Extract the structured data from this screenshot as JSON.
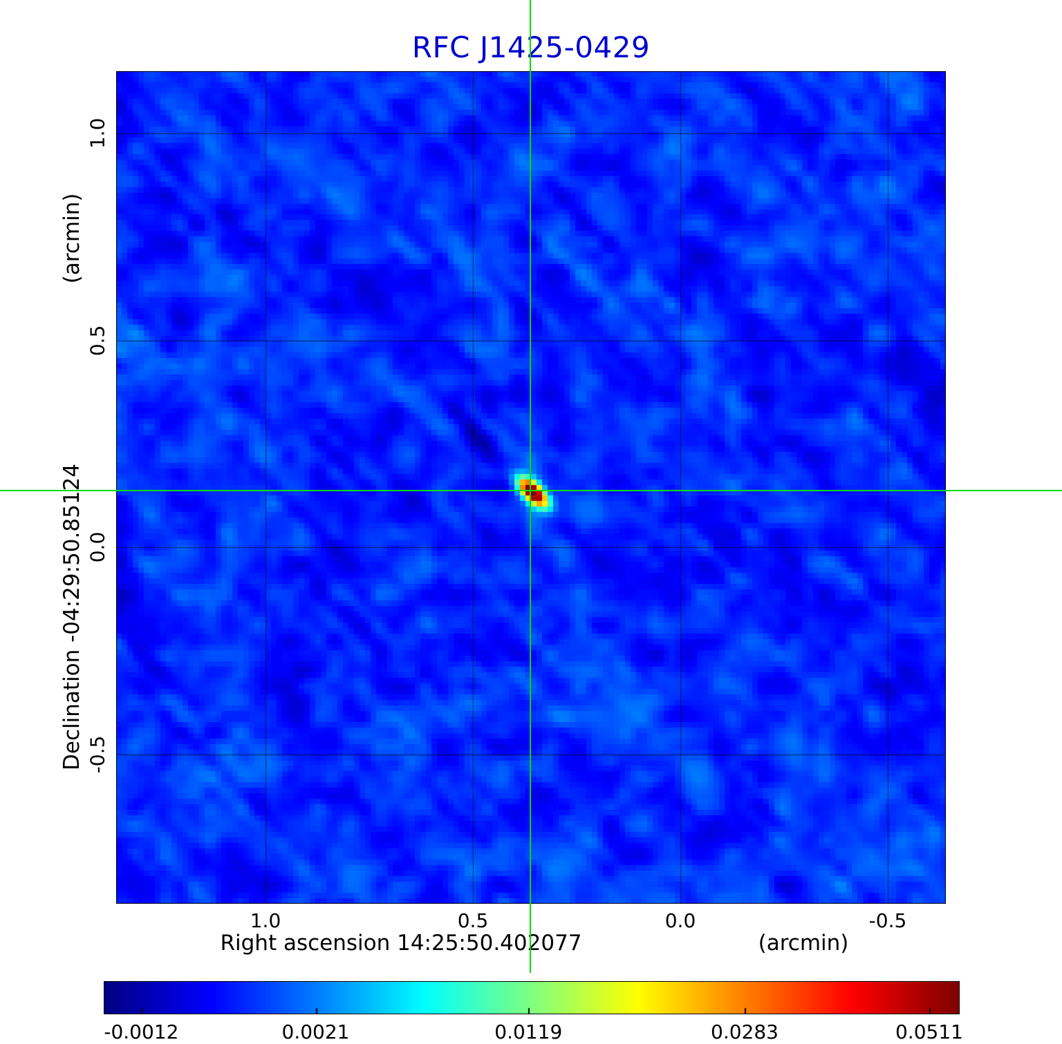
{
  "title": "RFC J1425-0429",
  "title_color": "#0000cd",
  "chart_data": {
    "type": "heatmap",
    "title": "RFC J1425-0429",
    "xlabel": "Right ascension  14:25:50.402077",
    "x_unit": "(arcmin)",
    "ylabel": "Declination  -04:29:50.85124",
    "y_unit": "(arcmin)",
    "x_ticks": [
      1.0,
      0.5,
      0.0,
      -0.5
    ],
    "x_tick_labels": [
      "1.0",
      "0.5",
      "0.0",
      "-0.5"
    ],
    "y_ticks": [
      1.0,
      0.5,
      0.0,
      -0.5
    ],
    "y_tick_labels": [
      "1.0",
      "0.5",
      "0.0",
      "-0.5"
    ],
    "x_range": [
      1.36,
      -0.64
    ],
    "y_range": [
      1.15,
      -0.86
    ],
    "grid": true,
    "colormap": "jet",
    "colorbar": {
      "orientation": "horizontal",
      "labels": [
        "-0.0012",
        "0.0021",
        "0.0119",
        "0.0283",
        "0.0511"
      ],
      "label_positions": [
        0.044,
        0.248,
        0.497,
        0.75,
        0.966
      ]
    },
    "crosshair": {
      "x": 0.362,
      "y": 0.137,
      "color": "#00dd00"
    },
    "source": {
      "x": 0.362,
      "y": 0.137,
      "peak_value": 0.0511,
      "position_angle_deg": 45
    },
    "texture": {
      "seed_coarse": 11,
      "seed_fine": 23,
      "seed_streak": 37,
      "pixel_size_px": 8,
      "base_level": 0.165
    }
  }
}
